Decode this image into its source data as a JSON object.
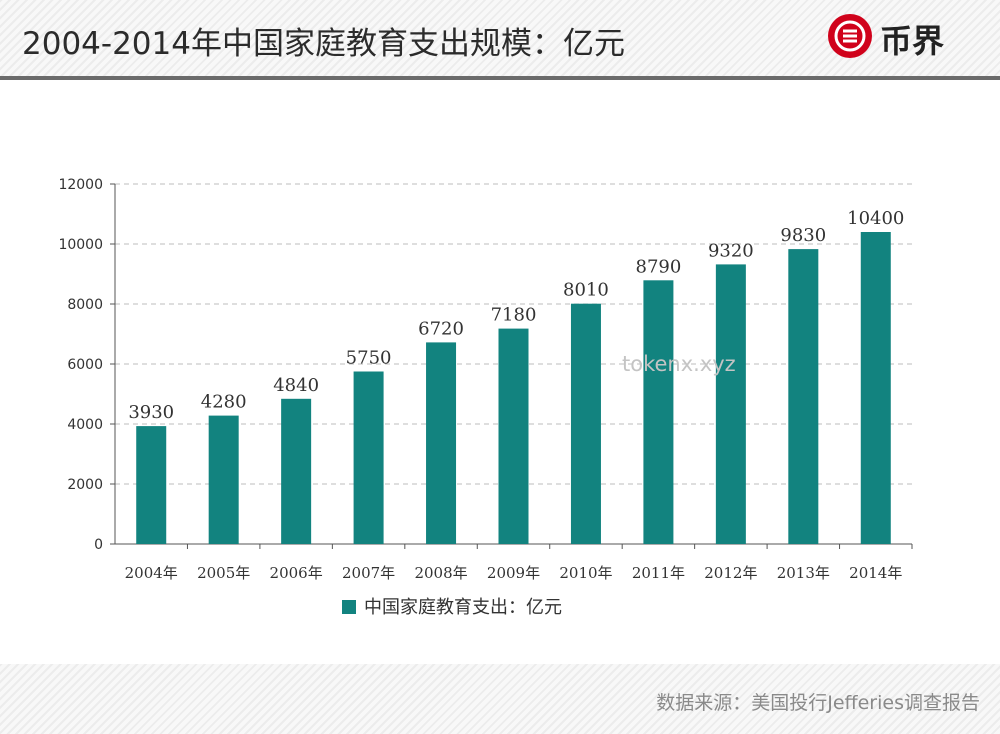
{
  "header": {
    "title": "2004-2014年中国家庭教育支出规模：亿元",
    "logo_text": "币界"
  },
  "footer": {
    "source": "数据来源：美国投行Jefferies调查报告"
  },
  "watermark": "tokenx.xyz",
  "colors": {
    "bar": "#12837f",
    "logo_red": "#d0021b",
    "grid": "#bdbdbd"
  },
  "chart_data": {
    "type": "bar",
    "categories": [
      "2004年",
      "2005年",
      "2006年",
      "2007年",
      "2008年",
      "2009年",
      "2010年",
      "2011年",
      "2012年",
      "2013年",
      "2014年"
    ],
    "series": [
      {
        "name": "中国家庭教育支出：亿元",
        "values": [
          3930,
          4280,
          4840,
          5750,
          6720,
          7180,
          8010,
          8790,
          9320,
          9830,
          10400
        ]
      }
    ],
    "ylim": [
      0,
      12000
    ],
    "yticks": [
      0,
      2000,
      4000,
      6000,
      8000,
      10000,
      12000
    ],
    "grid": true,
    "legend_position": "bottom",
    "data_labels": true
  }
}
